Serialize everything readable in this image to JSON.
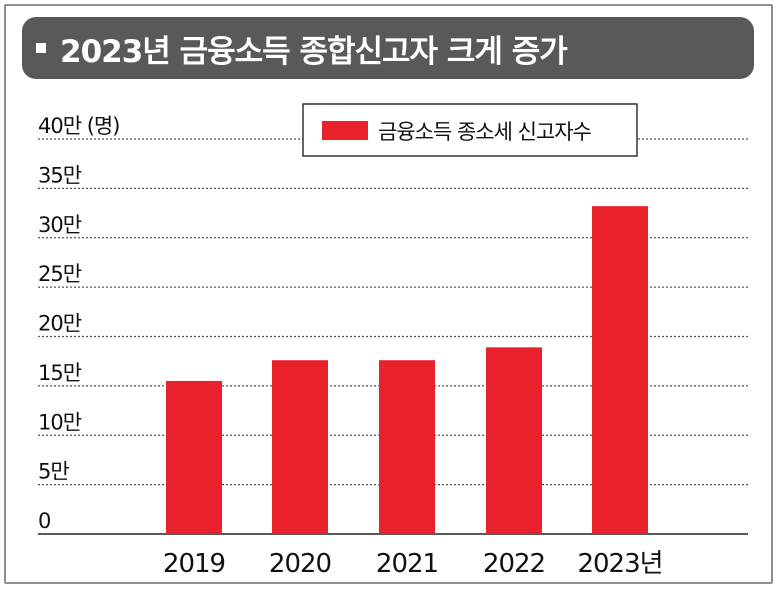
{
  "title": "2023년 금융소득 종합신고자 크게 증가",
  "colors": {
    "bar": "#e8212b",
    "title_bg": "#595959",
    "grid": "#555555"
  },
  "chart_data": {
    "type": "bar",
    "title": "2023년 금융소득 종합신고자 크게 증가",
    "categories": [
      "2019",
      "2020",
      "2021",
      "2022",
      "2023년"
    ],
    "series": [
      {
        "name": "금융소득 종소세 신고자수",
        "values": [
          15.5,
          17.6,
          17.6,
          18.9,
          33.2
        ]
      }
    ],
    "y_ticks": [
      {
        "value": 0,
        "label": "0"
      },
      {
        "value": 5,
        "label": "5만"
      },
      {
        "value": 10,
        "label": "10만"
      },
      {
        "value": 15,
        "label": "15만"
      },
      {
        "value": 20,
        "label": "20만"
      },
      {
        "value": 25,
        "label": "25만"
      },
      {
        "value": 30,
        "label": "30만"
      },
      {
        "value": 35,
        "label": "35만"
      },
      {
        "value": 40,
        "label": "40만 (명)"
      }
    ],
    "ylim": [
      0,
      40
    ],
    "ylabel": "",
    "xlabel": "",
    "grid": true,
    "legend_position": "top-right"
  }
}
